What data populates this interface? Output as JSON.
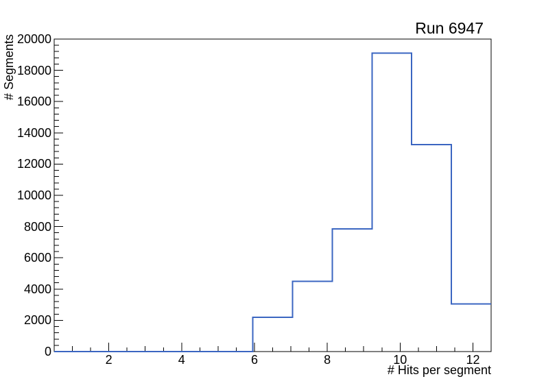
{
  "canvas": {
    "background": "#ffffff",
    "frame_color": "#000000",
    "text_color": "#000000"
  },
  "chart_data": {
    "type": "histogram",
    "title": "Run 6947",
    "xlabel": "# Hits per segment",
    "ylabel": "# Segments",
    "xlim": [
      0.5,
      12.5
    ],
    "ylim": [
      0,
      20000
    ],
    "grid": false,
    "legend": false,
    "line_color": "#3a65c1",
    "line_width": 2,
    "bin_edges": [
      0.5,
      1.591,
      2.682,
      3.773,
      4.864,
      5.955,
      7.045,
      8.136,
      9.227,
      10.318,
      11.409,
      12.5
    ],
    "bin_counts": [
      0,
      0,
      0,
      0,
      0,
      2200,
      4500,
      7850,
      19100,
      13250,
      3050
    ],
    "x_axis": {
      "major_ticks": [
        2,
        4,
        6,
        8,
        10,
        12
      ],
      "major_labels": [
        "2",
        "4",
        "6",
        "8",
        "10",
        "12"
      ],
      "medium_ticks": [
        1,
        3,
        5,
        7,
        9,
        11
      ],
      "minor_ticks": [
        1.5,
        2.5,
        3.5,
        4.5,
        5.5,
        6.5,
        7.5,
        8.5,
        9.5,
        10.5,
        11.5
      ]
    },
    "y_axis": {
      "major_ticks": [
        0,
        2000,
        4000,
        6000,
        8000,
        10000,
        12000,
        14000,
        16000,
        18000,
        20000
      ],
      "major_labels": [
        "0",
        "2000",
        "4000",
        "6000",
        "8000",
        "10000",
        "12000",
        "14000",
        "16000",
        "18000",
        "20000"
      ],
      "minor_step": 400
    }
  }
}
